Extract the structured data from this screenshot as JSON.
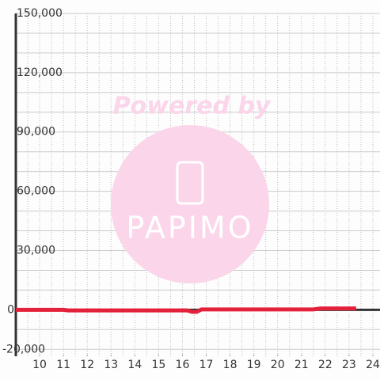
{
  "chart_data": {
    "type": "line",
    "annotations": [
      "Powered by",
      "PAPIMO"
    ],
    "x": [
      9,
      11,
      11.2,
      16.2,
      16.4,
      16.6,
      16.8,
      21.5,
      21.8,
      23.3
    ],
    "series": [
      {
        "color": "#e3213a",
        "values": [
          0,
          0,
          -300,
          -300,
          -1000,
          -1000,
          200,
          200,
          700,
          700
        ]
      }
    ],
    "xlim": [
      9,
      24.3
    ],
    "xticks": [
      10,
      11,
      12,
      13,
      14,
      15,
      16,
      17,
      18,
      19,
      20,
      21,
      22,
      23,
      24
    ],
    "xgrid": [
      9.5,
      10,
      10.5,
      11,
      11.5,
      12,
      12.5,
      13,
      13.5,
      14,
      14.5,
      15,
      15.5,
      16,
      16.5,
      17,
      17.5,
      18,
      18.5,
      19,
      19.5,
      20,
      20.5,
      21,
      21.5,
      22,
      22.5,
      23,
      23.5,
      24
    ],
    "ylim": [
      -23500,
      150000
    ],
    "yticks": [
      {
        "value": -20000,
        "label": "-20,000"
      },
      0,
      {
        "value": 30000,
        "label": "30,000"
      },
      {
        "value": 60000,
        "label": "60,000"
      },
      {
        "value": 90000,
        "label": "90,000"
      },
      {
        "value": 120000,
        "label": "120,000"
      },
      {
        "value": 150000,
        "label": "150,000"
      }
    ],
    "ygrid": [
      -10000,
      10000,
      20000,
      40000,
      50000,
      70000,
      80000,
      100000,
      110000,
      130000,
      140000
    ],
    "grid": true
  }
}
